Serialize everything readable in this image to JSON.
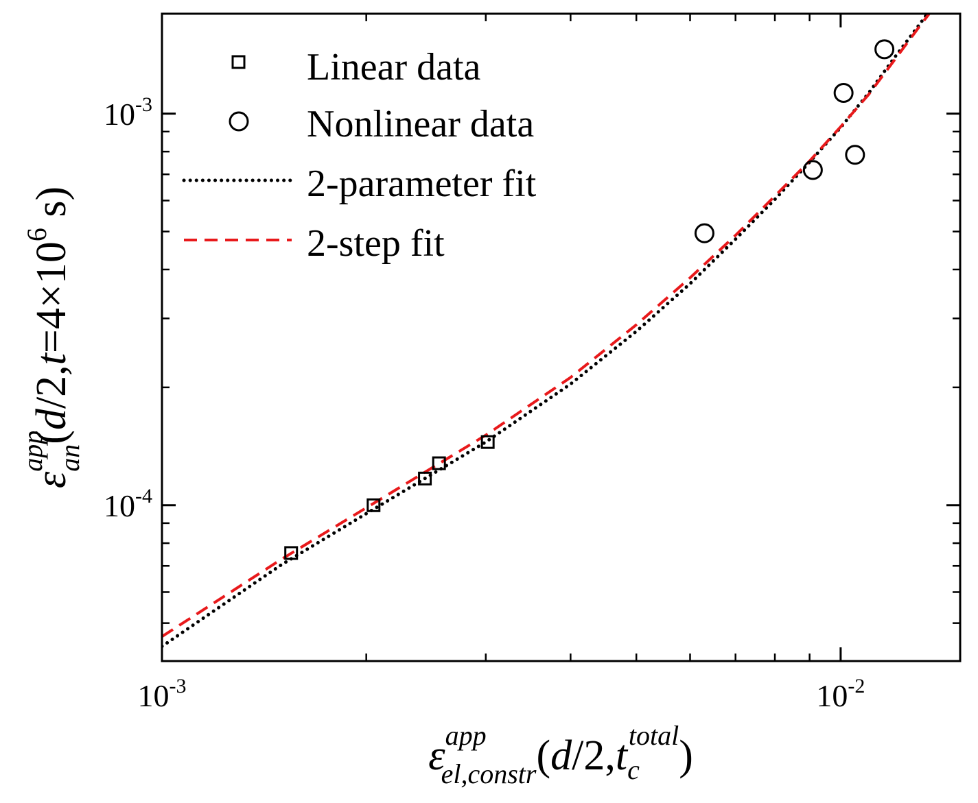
{
  "chart_data": {
    "type": "scatter",
    "x_scale": "log",
    "y_scale": "log",
    "xlim": [
      0.001,
      0.015
    ],
    "ylim": [
      4e-05,
      0.0018
    ],
    "grid": false,
    "legend_position": "top-left",
    "x_major_ticks": [
      {
        "value": 0.001,
        "base": "10",
        "exp": "-3"
      },
      {
        "value": 0.01,
        "base": "10",
        "exp": "-2"
      }
    ],
    "y_major_ticks": [
      {
        "value": 0.0001,
        "base": "10",
        "exp": "-4"
      },
      {
        "value": 0.001,
        "base": "10",
        "exp": "-3"
      }
    ],
    "xlabel": {
      "symbol": "ε",
      "superscript": "app",
      "subscript": "el,constr",
      "args_open": "(",
      "args_d": "d",
      "args_mid": "/2,",
      "args_t": "t",
      "args_t_sub": "c",
      "args_t_sup": "total",
      "args_close": ")"
    },
    "ylabel": {
      "symbol": "ε",
      "superscript": "app",
      "subscript": "an",
      "args_open": "(",
      "args_d": "d",
      "args_mid": "/2,",
      "args_t": "t",
      "args_eq": "=4×10",
      "args_exp": "6",
      "args_unit": " s)"
    },
    "series": [
      {
        "name": "Linear data",
        "kind": "scatter",
        "marker": "square",
        "color": "#000000",
        "points": [
          {
            "x": 0.00155,
            "y": 7.55e-05
          },
          {
            "x": 0.00205,
            "y": 0.0001
          },
          {
            "x": 0.00244,
            "y": 0.000117
          },
          {
            "x": 0.00256,
            "y": 0.000128
          },
          {
            "x": 0.00302,
            "y": 0.000145
          }
        ]
      },
      {
        "name": "Nonlinear data",
        "kind": "scatter",
        "marker": "circle",
        "color": "#000000",
        "points": [
          {
            "x": 0.0063,
            "y": 0.000495
          },
          {
            "x": 0.0091,
            "y": 0.000718
          },
          {
            "x": 0.0101,
            "y": 0.00113
          },
          {
            "x": 0.0105,
            "y": 0.000785
          },
          {
            "x": 0.0116,
            "y": 0.00146
          }
        ]
      },
      {
        "name": "2-parameter fit",
        "kind": "line",
        "style": "dotted",
        "color": "#000000",
        "points": [
          {
            "x": 0.001,
            "y": 4.36e-05
          },
          {
            "x": 0.0015,
            "y": 7.05e-05
          },
          {
            "x": 0.002,
            "y": 9.52e-05
          },
          {
            "x": 0.003,
            "y": 0.000145
          },
          {
            "x": 0.004,
            "y": 0.000204
          },
          {
            "x": 0.005,
            "y": 0.000278
          },
          {
            "x": 0.006,
            "y": 0.000368
          },
          {
            "x": 0.007,
            "y": 0.000478
          },
          {
            "x": 0.008,
            "y": 0.000604
          },
          {
            "x": 0.009,
            "y": 0.000752
          },
          {
            "x": 0.01,
            "y": 0.000922
          },
          {
            "x": 0.011,
            "y": 0.00113
          },
          {
            "x": 0.012,
            "y": 0.00139
          },
          {
            "x": 0.013,
            "y": 0.00167
          },
          {
            "x": 0.0137,
            "y": 0.00189
          }
        ]
      },
      {
        "name": "2-step fit",
        "kind": "line",
        "style": "dashed",
        "color": "#e8191b",
        "points": [
          {
            "x": 0.001,
            "y": 4.62e-05
          },
          {
            "x": 0.0015,
            "y": 7.28e-05
          },
          {
            "x": 0.002,
            "y": 9.85e-05
          },
          {
            "x": 0.003,
            "y": 0.000151
          },
          {
            "x": 0.004,
            "y": 0.000212
          },
          {
            "x": 0.005,
            "y": 0.000289
          },
          {
            "x": 0.006,
            "y": 0.000381
          },
          {
            "x": 0.007,
            "y": 0.000489
          },
          {
            "x": 0.008,
            "y": 0.000616
          },
          {
            "x": 0.009,
            "y": 0.000757
          },
          {
            "x": 0.01,
            "y": 0.000926
          },
          {
            "x": 0.011,
            "y": 0.00112
          },
          {
            "x": 0.012,
            "y": 0.00137
          },
          {
            "x": 0.013,
            "y": 0.00165
          },
          {
            "x": 0.0138,
            "y": 0.00189
          }
        ]
      }
    ]
  }
}
